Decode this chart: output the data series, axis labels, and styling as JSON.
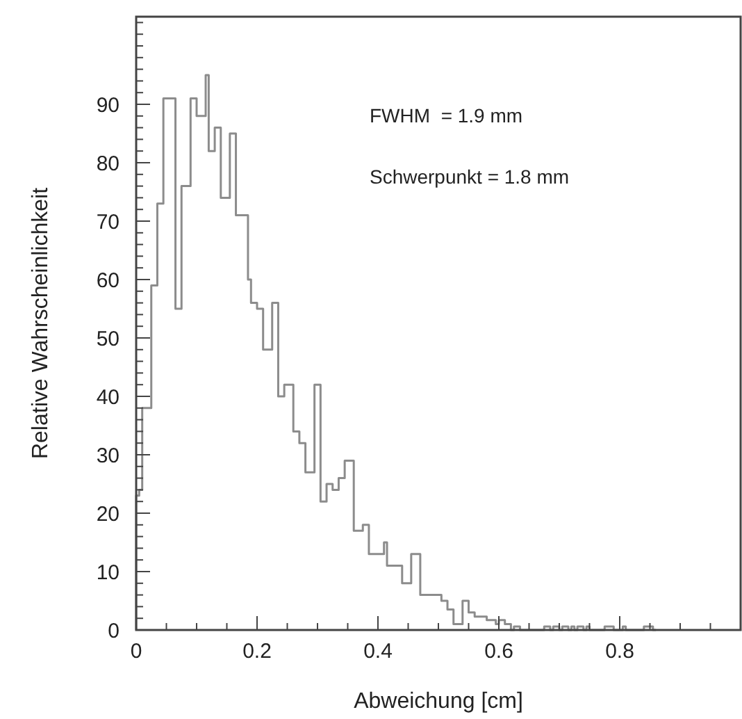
{
  "chart_data": {
    "type": "histogram",
    "xlabel": "Abweichung [cm]",
    "ylabel": "Relative Wahrscheinlichkeit",
    "annotations": [
      "FWHM  = 1.9 mm",
      "Schwerpunkt = 1.8 mm"
    ],
    "color": "#8c8c8c",
    "bins": [
      0,
      0.005,
      0.01,
      0.015,
      0.02,
      0.025,
      0.03,
      0.035,
      0.04,
      0.045,
      0.05,
      0.055,
      0.06,
      0.065,
      0.07,
      0.075,
      0.08,
      0.085,
      0.09,
      0.095,
      0.1,
      0.105,
      0.11,
      0.115,
      0.12,
      0.125,
      0.13,
      0.135,
      0.14,
      0.145,
      0.15,
      0.155,
      0.16,
      0.165,
      0.17,
      0.175,
      0.18,
      0.185,
      0.19,
      0.195,
      0.2,
      0.205,
      0.21,
      0.215,
      0.22,
      0.225,
      0.23,
      0.235,
      0.24,
      0.245,
      0.25,
      0.255,
      0.26,
      0.265,
      0.27,
      0.275,
      0.28,
      0.285,
      0.29,
      0.295,
      0.3,
      0.305,
      0.31,
      0.315,
      0.32,
      0.325,
      0.33,
      0.335,
      0.34,
      0.345,
      0.35,
      0.355,
      0.36,
      0.365,
      0.37,
      0.375,
      0.38,
      0.385,
      0.39,
      0.395,
      0.4,
      0.405,
      0.41,
      0.415,
      0.42,
      0.425,
      0.43,
      0.435,
      0.44,
      0.445,
      0.45,
      0.455,
      0.46,
      0.465,
      0.47,
      0.475,
      0.48,
      0.485,
      0.49,
      0.495,
      0.5,
      0.505,
      0.51,
      0.515,
      0.52,
      0.525,
      0.53,
      0.535,
      0.54,
      0.545,
      0.55,
      0.555,
      0.56,
      0.565,
      0.57,
      0.575,
      0.58,
      0.585,
      0.59,
      0.595,
      0.6,
      0.605,
      0.61,
      0.615,
      0.62,
      0.625,
      0.63,
      0.635,
      0.64,
      0.645,
      0.65,
      0.655,
      0.66,
      0.665,
      0.67,
      0.675,
      0.68,
      0.685,
      0.69,
      0.695,
      0.7,
      0.705,
      0.71,
      0.715,
      0.72,
      0.725,
      0.73,
      0.735,
      0.74,
      0.745,
      0.75,
      0.755,
      0.76,
      0.765,
      0.77,
      0.775,
      0.78,
      0.785,
      0.79,
      0.795,
      0.8,
      0.805,
      0.81,
      0.815,
      0.82,
      0.825,
      0.83,
      0.835,
      0.84,
      0.845,
      0.85,
      0.855,
      0.86
    ],
    "values": [
      23,
      24,
      38,
      38,
      38,
      59,
      59,
      73,
      73,
      91,
      91,
      91,
      91,
      55,
      55,
      76,
      76,
      76,
      91,
      91,
      88,
      88,
      88,
      95,
      82,
      82,
      86,
      86,
      74,
      74,
      74,
      85,
      85,
      71,
      71,
      71,
      71,
      60,
      56,
      56,
      55,
      55,
      48,
      48,
      48,
      56,
      56,
      40,
      40,
      42,
      42,
      42,
      34,
      34,
      32,
      32,
      27,
      27,
      27,
      42,
      42,
      22,
      22,
      25,
      25,
      24,
      24,
      26,
      26,
      29,
      29,
      29,
      17,
      17,
      17,
      18,
      18,
      13,
      13,
      13,
      13,
      13,
      15,
      11,
      11,
      11,
      11,
      11,
      8,
      8,
      8,
      13,
      13,
      13,
      6,
      6,
      6,
      6,
      6,
      6,
      6,
      5,
      5,
      3.5,
      3.5,
      1,
      1,
      1,
      5,
      5,
      3,
      3,
      2.3,
      2.3,
      2.3,
      2.3,
      1.7,
      1.7,
      1.7,
      1,
      1.7,
      1.7,
      1,
      1,
      0,
      0.6,
      0.6,
      0,
      0,
      0,
      0,
      0,
      0,
      0,
      0,
      0.6,
      0.6,
      0,
      0.6,
      0.6,
      0,
      0.6,
      0.6,
      0,
      0.6,
      0,
      0.6,
      0.6,
      0,
      0.6,
      0,
      0,
      0,
      0,
      0,
      0.6,
      0.6,
      0.6,
      0,
      0,
      0,
      0.6,
      0,
      0,
      0,
      0,
      0,
      0,
      0.6,
      0.6,
      0.6,
      0
    ],
    "xlim": [
      0,
      1
    ],
    "ylim": [
      0,
      105
    ],
    "xticks": [
      0,
      {
        "value": 0.05,
        "label": null
      },
      {
        "value": 0.1,
        "label": null
      },
      {
        "value": 0.15,
        "label": null
      },
      0.2,
      {
        "value": 0.25,
        "label": null
      },
      {
        "value": 0.3,
        "label": null
      },
      {
        "value": 0.35,
        "label": null
      },
      0.4,
      {
        "value": 0.45,
        "label": null
      },
      {
        "value": 0.5,
        "label": null
      },
      {
        "value": 0.55,
        "label": null
      },
      0.6,
      {
        "value": 0.65,
        "label": null
      },
      {
        "value": 0.7,
        "label": null
      },
      {
        "value": 0.75,
        "label": null
      },
      0.8,
      {
        "value": 0.85,
        "label": null
      },
      {
        "value": 0.9,
        "label": null
      },
      {
        "value": 0.95,
        "label": null
      }
    ],
    "yticks": [
      0,
      {
        "value": 2,
        "label": null
      },
      {
        "value": 4,
        "label": null
      },
      {
        "value": 6,
        "label": null
      },
      {
        "value": 8,
        "label": null
      },
      10,
      {
        "value": 12,
        "label": null
      },
      {
        "value": 14,
        "label": null
      },
      {
        "value": 16,
        "label": null
      },
      {
        "value": 18,
        "label": null
      },
      20,
      {
        "value": 22,
        "label": null
      },
      {
        "value": 24,
        "label": null
      },
      {
        "value": 26,
        "label": null
      },
      {
        "value": 28,
        "label": null
      },
      30,
      {
        "value": 32,
        "label": null
      },
      {
        "value": 34,
        "label": null
      },
      {
        "value": 36,
        "label": null
      },
      {
        "value": 38,
        "label": null
      },
      40,
      {
        "value": 42,
        "label": null
      },
      {
        "value": 44,
        "label": null
      },
      {
        "value": 46,
        "label": null
      },
      {
        "value": 48,
        "label": null
      },
      50,
      {
        "value": 52,
        "label": null
      },
      {
        "value": 54,
        "label": null
      },
      {
        "value": 56,
        "label": null
      },
      {
        "value": 58,
        "label": null
      },
      60,
      {
        "value": 62,
        "label": null
      },
      {
        "value": 64,
        "label": null
      },
      {
        "value": 66,
        "label": null
      },
      {
        "value": 68,
        "label": null
      },
      70,
      {
        "value": 72,
        "label": null
      },
      {
        "value": 74,
        "label": null
      },
      {
        "value": 76,
        "label": null
      },
      {
        "value": 78,
        "label": null
      },
      80,
      {
        "value": 82,
        "label": null
      },
      {
        "value": 84,
        "label": null
      },
      {
        "value": 86,
        "label": null
      },
      {
        "value": 88,
        "label": null
      },
      90,
      {
        "value": 92,
        "label": null
      },
      {
        "value": 94,
        "label": null
      },
      {
        "value": 96,
        "label": null
      },
      {
        "value": 98,
        "label": null
      },
      {
        "value": 100,
        "label": null
      },
      {
        "value": 102,
        "label": null
      },
      {
        "value": 104,
        "label": null
      }
    ],
    "grid": false
  }
}
